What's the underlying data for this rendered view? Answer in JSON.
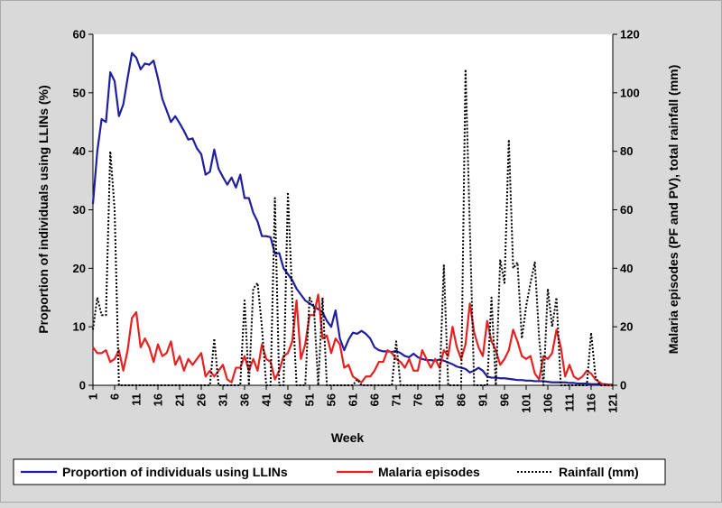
{
  "chart_data": {
    "type": "line",
    "xlabel": "Week",
    "ylabel": "Proportion of individuals using LLINs (%)",
    "y2label": "Malaria episodes (PF and PV), total rainfall (mm)",
    "xlim": [
      1,
      121
    ],
    "ylim": [
      0,
      60
    ],
    "y2lim": [
      0,
      120
    ],
    "x_ticks": [
      1,
      6,
      11,
      16,
      21,
      26,
      31,
      36,
      41,
      46,
      51,
      56,
      61,
      66,
      71,
      76,
      81,
      86,
      91,
      96,
      101,
      106,
      111,
      116,
      121
    ],
    "y_ticks": [
      0,
      10,
      20,
      30,
      40,
      50,
      60
    ],
    "y2_ticks": [
      0,
      20,
      40,
      60,
      80,
      100,
      120
    ],
    "grid": false,
    "legend_position": "bottom",
    "series": [
      {
        "name": "Proportion of individuals using LLINs",
        "axis": "left",
        "color": "#1f1f9f",
        "style": "solid",
        "x": [
          1,
          2,
          3,
          4,
          5,
          6,
          7,
          8,
          9,
          10,
          11,
          12,
          13,
          14,
          15,
          16,
          17,
          18,
          19,
          20,
          21,
          22,
          23,
          24,
          25,
          26,
          27,
          28,
          29,
          30,
          31,
          32,
          33,
          34,
          35,
          36,
          37,
          38,
          39,
          40,
          41,
          42,
          43,
          44,
          45,
          46,
          47,
          48,
          49,
          50,
          51,
          52,
          53,
          54,
          55,
          56,
          57,
          58,
          59,
          60,
          61,
          62,
          63,
          64,
          65,
          66,
          67,
          68,
          69,
          70,
          71,
          72,
          73,
          74,
          75,
          76,
          77,
          78,
          79,
          80,
          81,
          82,
          83,
          84,
          85,
          86,
          87,
          88,
          89,
          90,
          91,
          92,
          93,
          94,
          95,
          96,
          97,
          98,
          99,
          100,
          101,
          102,
          103,
          104,
          105,
          106,
          107,
          108,
          109,
          110,
          111,
          112,
          113,
          114,
          115,
          116,
          117,
          118,
          119,
          120,
          121
        ],
        "values": [
          31,
          40,
          45.5,
          45,
          53.5,
          52,
          46,
          48,
          52.5,
          56.8,
          56,
          54,
          55,
          54.8,
          55.5,
          52.5,
          49,
          47,
          45,
          46,
          44.8,
          43.5,
          42,
          42.2,
          40.5,
          39.5,
          36,
          36.5,
          40.3,
          37,
          35.6,
          34.3,
          35.5,
          33.8,
          36,
          32,
          32,
          29.5,
          28,
          25.5,
          25.5,
          25.3,
          22.5,
          22.6,
          20,
          19,
          18,
          16.5,
          15.5,
          14.5,
          14,
          13.5,
          13,
          12.5,
          11,
          10,
          12.8,
          8,
          6,
          7.8,
          9,
          8.8,
          9.3,
          8.8,
          8,
          6.5,
          6,
          5.8,
          5.8,
          5.7,
          5.9,
          5.5,
          5,
          4.8,
          5.4,
          4.8,
          4.5,
          4.3,
          4.3,
          4.2,
          4.4,
          4.2,
          3.9,
          3.6,
          3.2,
          3,
          2.8,
          2.2,
          2.5,
          3,
          2.5,
          1.5,
          1.3,
          1.3,
          1.2,
          1.2,
          1.1,
          1,
          0.9,
          0.9,
          0.8,
          0.8,
          0.7,
          0.7,
          0.7,
          0.6,
          0.5,
          0.5,
          0.5,
          0.5,
          0.4,
          0.4,
          0.3,
          0.3,
          0.3,
          0.2,
          0.2,
          0.2,
          0.2,
          0.1,
          0.1
        ]
      },
      {
        "name": "Malaria episodes",
        "axis": "right",
        "color": "#e82020",
        "style": "solid",
        "x": [
          1,
          2,
          3,
          4,
          5,
          6,
          7,
          8,
          9,
          10,
          11,
          12,
          13,
          14,
          15,
          16,
          17,
          18,
          19,
          20,
          21,
          22,
          23,
          24,
          25,
          26,
          27,
          28,
          29,
          30,
          31,
          32,
          33,
          34,
          35,
          36,
          37,
          38,
          39,
          40,
          41,
          42,
          43,
          44,
          45,
          46,
          47,
          48,
          49,
          50,
          51,
          52,
          53,
          54,
          55,
          56,
          57,
          58,
          59,
          60,
          61,
          62,
          63,
          64,
          65,
          66,
          67,
          68,
          69,
          70,
          71,
          72,
          73,
          74,
          75,
          76,
          77,
          78,
          79,
          80,
          81,
          82,
          83,
          84,
          85,
          86,
          87,
          88,
          89,
          90,
          91,
          92,
          93,
          94,
          95,
          96,
          97,
          98,
          99,
          100,
          101,
          102,
          103,
          104,
          105,
          106,
          107,
          108,
          109,
          110,
          111,
          112,
          113,
          114,
          115,
          116,
          117,
          118,
          119,
          120,
          121
        ],
        "values": [
          13,
          11,
          11,
          12,
          8,
          9,
          12,
          5,
          12,
          23,
          25,
          13,
          16,
          13,
          8,
          14,
          10,
          11,
          15,
          7,
          10,
          5,
          9,
          7,
          9,
          11,
          3,
          5,
          3,
          5,
          7,
          2,
          1,
          6,
          6,
          10,
          5,
          9,
          5,
          14,
          9,
          8,
          2,
          5,
          10,
          11,
          15,
          29,
          9,
          14,
          24,
          24,
          31,
          16,
          17,
          11,
          16,
          14,
          6,
          7,
          3,
          2,
          1,
          3,
          3,
          5,
          8,
          8,
          12,
          11,
          9,
          8,
          6,
          9,
          5,
          5,
          12,
          9,
          6,
          9,
          6,
          12,
          10,
          20,
          13,
          9,
          14,
          28,
          18,
          13,
          10,
          22,
          15,
          12,
          7,
          9,
          12,
          19,
          15,
          10,
          9,
          10,
          4,
          2,
          10,
          9,
          11,
          19,
          13,
          3,
          7,
          3,
          2,
          3,
          5,
          4,
          2,
          1,
          0,
          0,
          0
        ]
      },
      {
        "name": "Rainfall (mm)",
        "axis": "right",
        "color": "#000000",
        "style": "dotted",
        "x": [
          1,
          2,
          3,
          4,
          5,
          6,
          7,
          8,
          9,
          10,
          11,
          12,
          13,
          14,
          15,
          16,
          17,
          18,
          19,
          20,
          21,
          22,
          23,
          24,
          25,
          26,
          27,
          28,
          29,
          30,
          31,
          32,
          33,
          34,
          35,
          36,
          37,
          38,
          39,
          40,
          41,
          42,
          43,
          44,
          45,
          46,
          47,
          48,
          49,
          50,
          51,
          52,
          53,
          54,
          55,
          56,
          57,
          58,
          59,
          60,
          61,
          62,
          63,
          64,
          65,
          66,
          67,
          68,
          69,
          70,
          71,
          72,
          73,
          74,
          75,
          76,
          77,
          78,
          79,
          80,
          81,
          82,
          83,
          84,
          85,
          86,
          87,
          88,
          89,
          90,
          91,
          92,
          93,
          94,
          95,
          96,
          97,
          98,
          99,
          100,
          101,
          102,
          103,
          104,
          105,
          106,
          107,
          108,
          109,
          110,
          111,
          112,
          113,
          114,
          115,
          116,
          117,
          118,
          119,
          120,
          121
        ],
        "values": [
          19,
          30,
          24,
          24,
          80,
          60,
          0,
          0,
          0,
          0,
          0,
          0,
          0,
          0,
          0,
          0,
          0,
          0,
          0,
          0,
          0,
          0,
          0,
          0,
          0,
          0,
          0,
          0,
          16,
          0,
          0,
          0,
          0,
          0,
          0,
          29,
          0,
          33,
          35,
          20,
          0,
          0,
          64,
          0,
          0,
          66,
          30,
          0,
          0,
          0,
          30,
          27,
          0,
          30,
          0,
          0,
          0,
          0,
          0,
          0,
          0,
          2,
          0,
          0,
          0,
          0,
          0,
          0,
          0,
          0,
          15,
          0,
          0,
          0,
          0,
          0,
          0,
          0,
          0,
          0,
          0,
          41,
          0,
          0,
          0,
          0,
          108,
          54,
          0,
          0,
          0,
          0,
          30,
          0,
          43,
          35,
          84,
          40,
          42,
          16,
          27,
          35,
          42,
          16,
          0,
          33,
          20,
          30,
          0,
          0,
          0,
          0,
          0,
          0,
          0,
          18,
          3,
          0,
          0,
          0,
          0
        ]
      }
    ]
  }
}
